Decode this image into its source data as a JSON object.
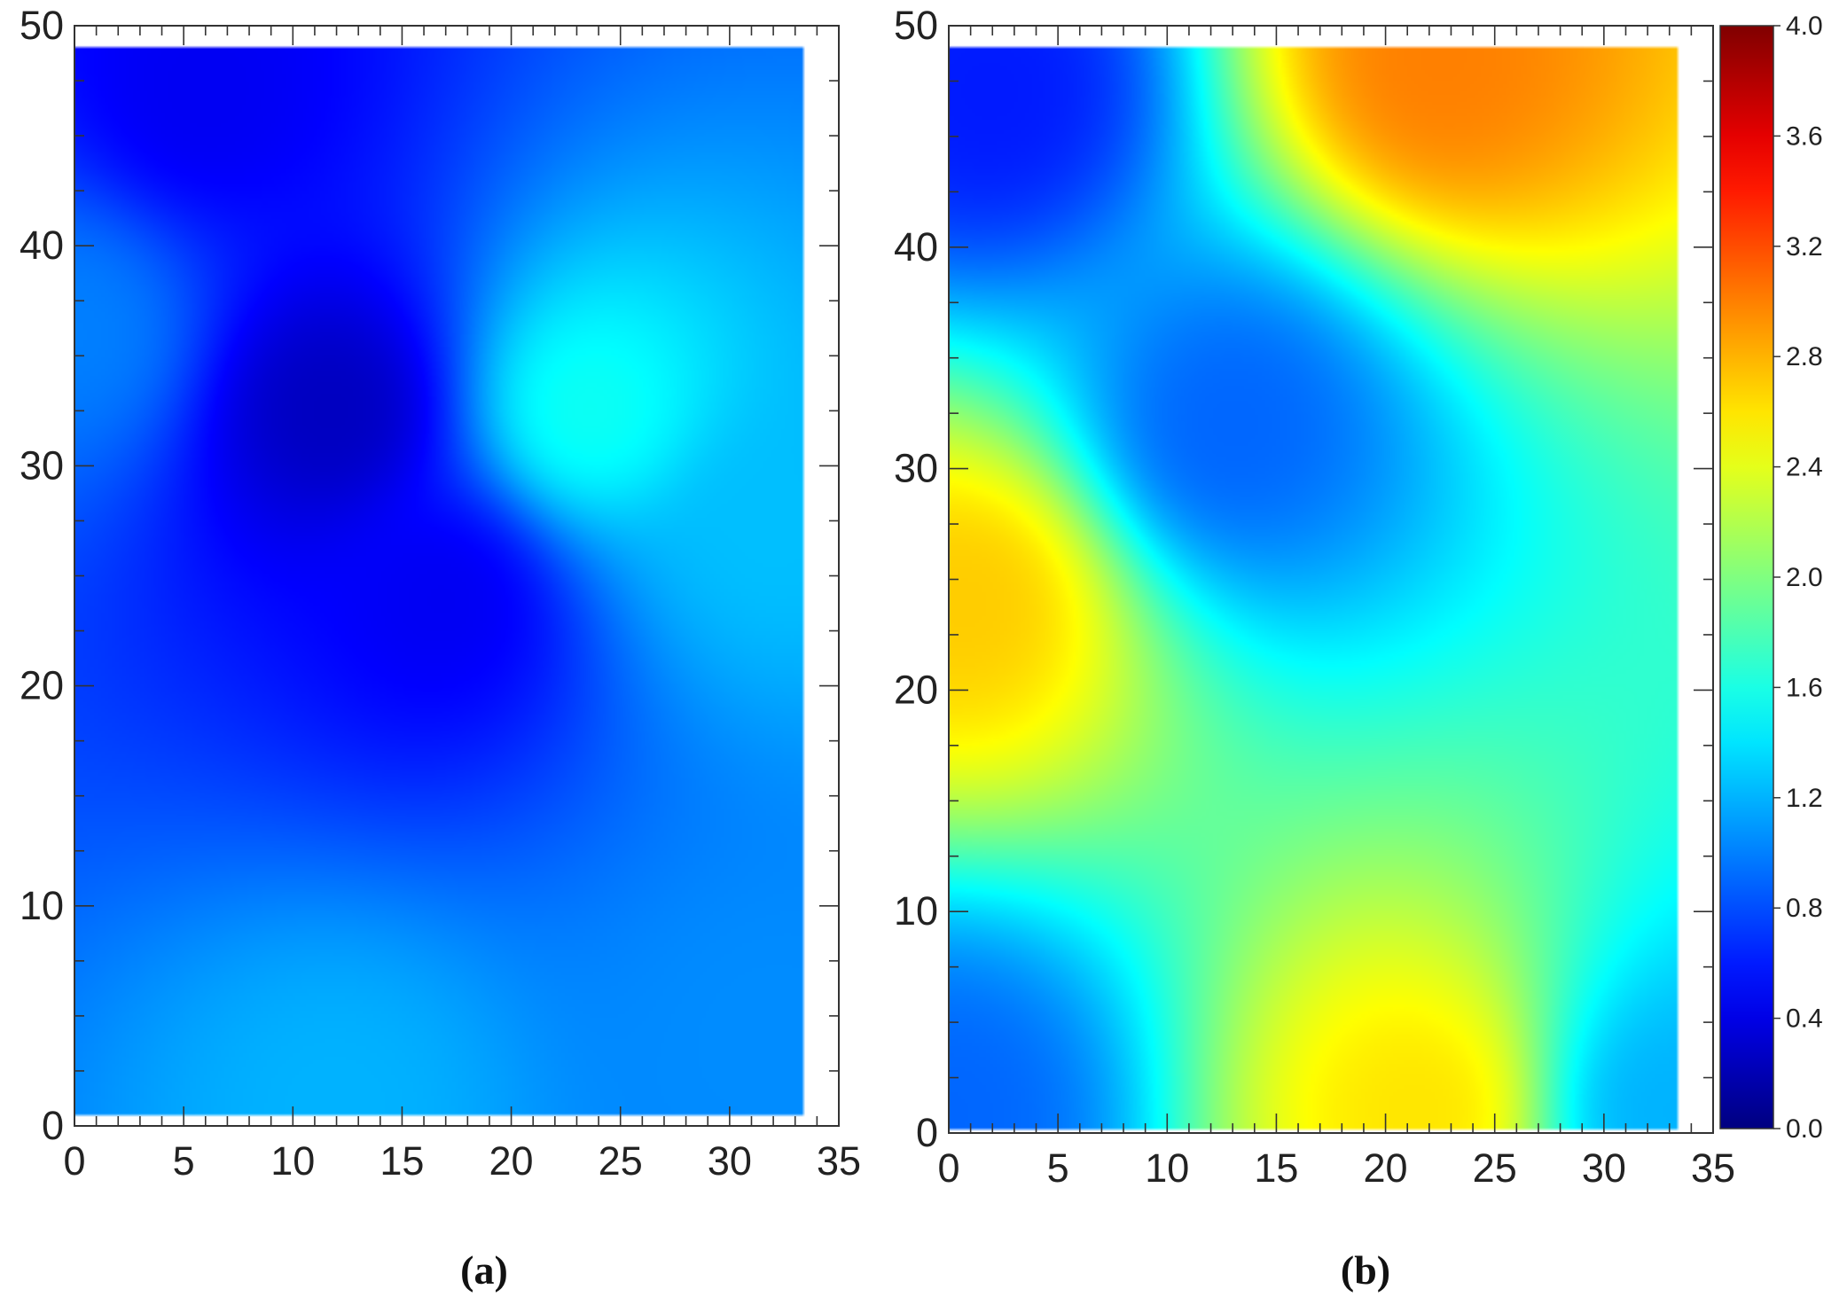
{
  "chart_data": [
    {
      "type": "heatmap",
      "panel_label": "(a)",
      "x_ticks": [
        "0",
        "5",
        "10",
        "15",
        "20",
        "25",
        "30",
        "35"
      ],
      "y_ticks": [
        "0",
        "10",
        "20",
        "30",
        "40",
        "50"
      ],
      "xlim": [
        0,
        35
      ],
      "ylim": [
        0,
        50
      ],
      "data_extent": {
        "x": [
          0,
          33.3
        ],
        "y": [
          0.5,
          49
        ]
      },
      "baseline": 0.7,
      "features": [
        {
          "x": 11.8,
          "y": 32.5,
          "value": 0.25,
          "note": "local minimum"
        },
        {
          "x": 17,
          "y": 24,
          "value": 0.45
        },
        {
          "x": 23.5,
          "y": 32.5,
          "value": 1.55,
          "note": "local maximum"
        },
        {
          "x": 12,
          "y": 1,
          "value": 1.2
        },
        {
          "x": 0,
          "y": 36,
          "value": 1.0
        },
        {
          "x": 32,
          "y": 27,
          "value": 1.25
        },
        {
          "x": 32,
          "y": 4,
          "value": 1.05
        },
        {
          "x": 6,
          "y": 47,
          "value": 0.45
        }
      ]
    },
    {
      "type": "heatmap",
      "panel_label": "(b)",
      "x_ticks": [
        "0",
        "5",
        "10",
        "15",
        "20",
        "25",
        "30",
        "35"
      ],
      "y_ticks": [
        "0",
        "10",
        "20",
        "30",
        "40",
        "50"
      ],
      "xlim": [
        0,
        35
      ],
      "ylim": [
        0,
        50
      ],
      "data_extent": {
        "x": [
          0,
          33.3
        ],
        "y": [
          0.2,
          49
        ]
      },
      "colorbar": {
        "min": 0.0,
        "max": 4.0,
        "ticks": [
          "0.0",
          "0.4",
          "0.8",
          "1.2",
          "1.6",
          "2.0",
          "2.4",
          "2.8",
          "3.2",
          "3.6",
          "4.0"
        ]
      },
      "features": [
        {
          "x": 22.5,
          "y": 48.5,
          "value": 3.0,
          "note": "hot spot top"
        },
        {
          "x": 0.8,
          "y": 24,
          "value": 2.7,
          "note": "hot spot left"
        },
        {
          "x": 21.5,
          "y": 1,
          "value": 2.6,
          "note": "hot spot bottom"
        },
        {
          "x": 13,
          "y": 32,
          "value": 0.9,
          "note": "low zone"
        },
        {
          "x": 2,
          "y": 47,
          "value": 0.6
        },
        {
          "x": 0,
          "y": 1,
          "value": 0.9
        },
        {
          "x": 33,
          "y": 1,
          "value": 1.2
        }
      ]
    }
  ]
}
